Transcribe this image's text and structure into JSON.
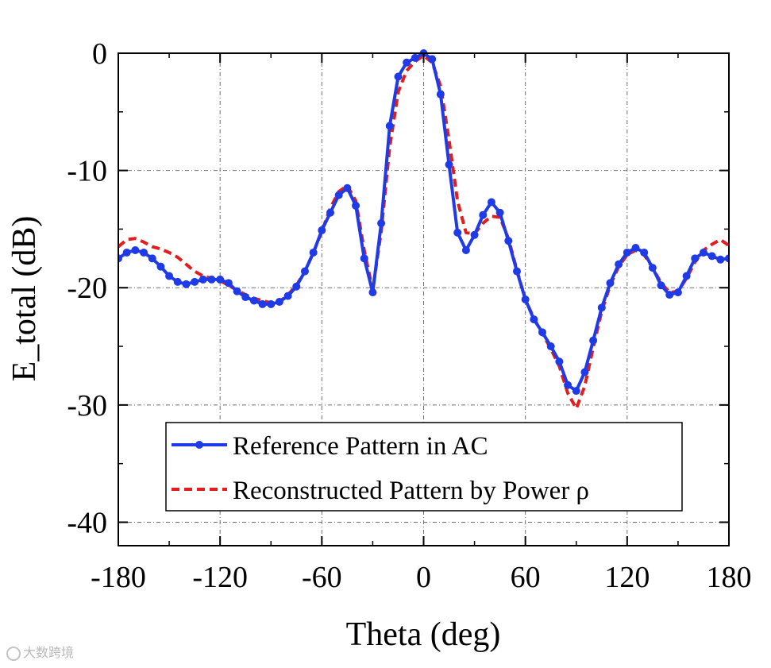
{
  "watermark": "大数跨境",
  "chart_data": {
    "type": "line",
    "xlabel": "Theta (deg)",
    "ylabel": "E_total (dB)",
    "xlim": [
      -180,
      180
    ],
    "ylim": [
      -42,
      0
    ],
    "xticks": [
      -180,
      -120,
      -60,
      0,
      60,
      120,
      180
    ],
    "xtick_labels": [
      "-180",
      "-120",
      "-60",
      "0",
      "60",
      "120",
      "180"
    ],
    "yticks": [
      0,
      -10,
      -20,
      -30,
      -40
    ],
    "ytick_labels": [
      "0",
      "-10",
      "-20",
      "-30",
      "-40"
    ],
    "grid": true,
    "legend_position": "lower-left",
    "series": [
      {
        "name": "Reference Pattern in AC",
        "color": "#1f3be8",
        "style": "solid-with-markers",
        "x": [
          -180,
          -175,
          -170,
          -165,
          -160,
          -155,
          -150,
          -145,
          -140,
          -135,
          -130,
          -125,
          -120,
          -115,
          -110,
          -105,
          -100,
          -95,
          -90,
          -85,
          -80,
          -75,
          -70,
          -65,
          -60,
          -55,
          -50,
          -45,
          -40,
          -35,
          -30,
          -25,
          -20,
          -15,
          -10,
          -5,
          0,
          5,
          10,
          15,
          20,
          25,
          30,
          35,
          40,
          45,
          50,
          55,
          60,
          65,
          70,
          75,
          80,
          85,
          90,
          95,
          100,
          105,
          110,
          115,
          120,
          125,
          130,
          135,
          140,
          145,
          150,
          155,
          160,
          165,
          170,
          175,
          180
        ],
        "y": [
          -17.5,
          -17.0,
          -16.8,
          -17.0,
          -17.5,
          -18.2,
          -19.0,
          -19.5,
          -19.7,
          -19.5,
          -19.3,
          -19.3,
          -19.3,
          -19.6,
          -20.3,
          -20.8,
          -21.1,
          -21.4,
          -21.4,
          -21.2,
          -20.7,
          -19.9,
          -18.6,
          -17.0,
          -15.1,
          -13.6,
          -12.1,
          -11.5,
          -13.0,
          -17.5,
          -20.4,
          -14.5,
          -6.2,
          -2.0,
          -0.8,
          -0.4,
          0.0,
          -0.5,
          -3.5,
          -9.5,
          -15.3,
          -16.8,
          -15.5,
          -13.8,
          -12.7,
          -13.6,
          -16.0,
          -18.6,
          -21.0,
          -22.7,
          -23.8,
          -25.0,
          -26.3,
          -28.3,
          -28.8,
          -27.2,
          -24.5,
          -21.7,
          -19.6,
          -18.0,
          -17.0,
          -16.6,
          -17.0,
          -18.3,
          -19.8,
          -20.6,
          -20.4,
          -19.0,
          -17.5,
          -17.0,
          -17.3,
          -17.6,
          -17.5
        ]
      },
      {
        "name": "Reconstructed Pattern by Power ρ",
        "color": "#e21d1d",
        "style": "dashed",
        "x": [
          -180,
          -175,
          -170,
          -165,
          -160,
          -155,
          -150,
          -145,
          -140,
          -135,
          -130,
          -125,
          -120,
          -115,
          -110,
          -105,
          -100,
          -95,
          -90,
          -85,
          -80,
          -75,
          -70,
          -65,
          -60,
          -55,
          -50,
          -45,
          -40,
          -35,
          -30,
          -25,
          -20,
          -15,
          -10,
          -5,
          0,
          5,
          10,
          15,
          20,
          25,
          30,
          35,
          40,
          45,
          50,
          55,
          60,
          65,
          70,
          75,
          80,
          85,
          90,
          95,
          100,
          105,
          110,
          115,
          120,
          125,
          130,
          135,
          140,
          145,
          150,
          155,
          160,
          165,
          170,
          175,
          180
        ],
        "y": [
          -16.5,
          -15.9,
          -15.8,
          -16.1,
          -16.5,
          -16.7,
          -17.0,
          -17.4,
          -18.0,
          -18.6,
          -19.0,
          -19.2,
          -19.4,
          -19.8,
          -20.2,
          -20.6,
          -20.9,
          -21.1,
          -21.3,
          -21.2,
          -20.6,
          -19.8,
          -18.6,
          -17.0,
          -15.2,
          -13.2,
          -11.8,
          -11.3,
          -12.6,
          -16.8,
          -20.2,
          -15.2,
          -8.0,
          -3.3,
          -1.5,
          -0.7,
          -0.2,
          -0.8,
          -2.8,
          -7.4,
          -12.6,
          -15.3,
          -15.4,
          -14.5,
          -13.9,
          -14.0,
          -15.8,
          -18.5,
          -21.0,
          -22.6,
          -23.9,
          -25.2,
          -26.7,
          -29.0,
          -30.3,
          -28.4,
          -25.1,
          -22.0,
          -19.8,
          -18.2,
          -17.2,
          -16.8,
          -17.2,
          -18.3,
          -19.6,
          -20.4,
          -20.3,
          -19.2,
          -17.8,
          -16.8,
          -16.3,
          -15.9,
          -16.4
        ]
      }
    ]
  }
}
